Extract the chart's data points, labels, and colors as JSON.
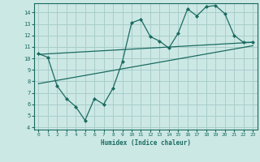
{
  "background_color": "#cce8e5",
  "grid_color": "#a8ceca",
  "line_color": "#1a6b60",
  "xlabel": "Humidex (Indice chaleur)",
  "ylim": [
    3.8,
    14.8
  ],
  "xlim": [
    -0.5,
    23.5
  ],
  "yticks": [
    4,
    5,
    6,
    7,
    8,
    9,
    10,
    11,
    12,
    13,
    14
  ],
  "xticks": [
    0,
    1,
    2,
    3,
    4,
    5,
    6,
    7,
    8,
    9,
    10,
    11,
    12,
    13,
    14,
    15,
    16,
    17,
    18,
    19,
    20,
    21,
    22,
    23
  ],
  "series1_x": [
    0,
    1,
    2,
    3,
    4,
    5,
    6,
    7,
    8,
    9,
    10,
    11,
    12,
    13,
    14,
    15,
    16,
    17,
    18,
    19,
    20,
    21,
    22,
    23
  ],
  "series1_y": [
    10.4,
    10.1,
    7.6,
    6.5,
    5.8,
    4.6,
    6.5,
    6.0,
    7.4,
    9.7,
    13.1,
    13.4,
    11.9,
    11.5,
    10.9,
    12.2,
    14.3,
    13.7,
    14.5,
    14.6,
    13.9,
    12.0,
    11.4,
    11.4
  ],
  "series2_x": [
    0,
    23
  ],
  "series2_y": [
    10.35,
    11.4
  ],
  "series3_x": [
    0,
    23
  ],
  "series3_y": [
    7.8,
    11.1
  ]
}
